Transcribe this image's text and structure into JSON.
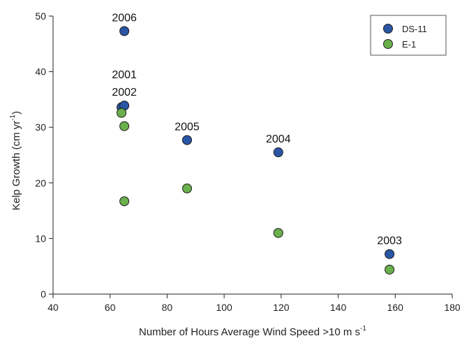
{
  "chart_data": {
    "type": "scatter",
    "xlabel": "Number of Hours Average Wind Speed >10 m s",
    "xlabel_sup": "-1",
    "ylabel": "Kelp Growth (cm yr",
    "ylabel_sup": "-1",
    "ylabel_close": ")",
    "xlim": [
      40,
      180
    ],
    "ylim": [
      0,
      50
    ],
    "xticks": [
      40,
      60,
      80,
      100,
      120,
      140,
      160,
      180
    ],
    "yticks": [
      0,
      10,
      20,
      30,
      40,
      50
    ],
    "legend": {
      "placement": "top-right"
    },
    "series": [
      {
        "name": "DS-11",
        "color": "#2a56a6",
        "points": [
          {
            "x": 65,
            "y": 47.3
          },
          {
            "x": 64,
            "y": 33.6
          },
          {
            "x": 65,
            "y": 33.9
          },
          {
            "x": 87,
            "y": 27.7
          },
          {
            "x": 119,
            "y": 25.5
          },
          {
            "x": 158,
            "y": 7.2
          }
        ]
      },
      {
        "name": "E-1",
        "color": "#6ab04c",
        "points": [
          {
            "x": 64,
            "y": 32.6
          },
          {
            "x": 65,
            "y": 30.2
          },
          {
            "x": 65,
            "y": 16.7
          },
          {
            "x": 87,
            "y": 19.0
          },
          {
            "x": 119,
            "y": 11.0
          },
          {
            "x": 158,
            "y": 4.4
          }
        ]
      }
    ],
    "annotations": [
      {
        "text": "2006",
        "x": 65,
        "y": 47.3
      },
      {
        "text": "2001",
        "x": 65,
        "y": 33.9,
        "level": 2
      },
      {
        "text": "2002",
        "x": 65,
        "y": 33.9,
        "level": 1
      },
      {
        "text": "2005",
        "x": 87,
        "y": 27.7
      },
      {
        "text": "2004",
        "x": 119,
        "y": 25.5
      },
      {
        "text": "2003",
        "x": 158,
        "y": 7.2
      }
    ]
  }
}
